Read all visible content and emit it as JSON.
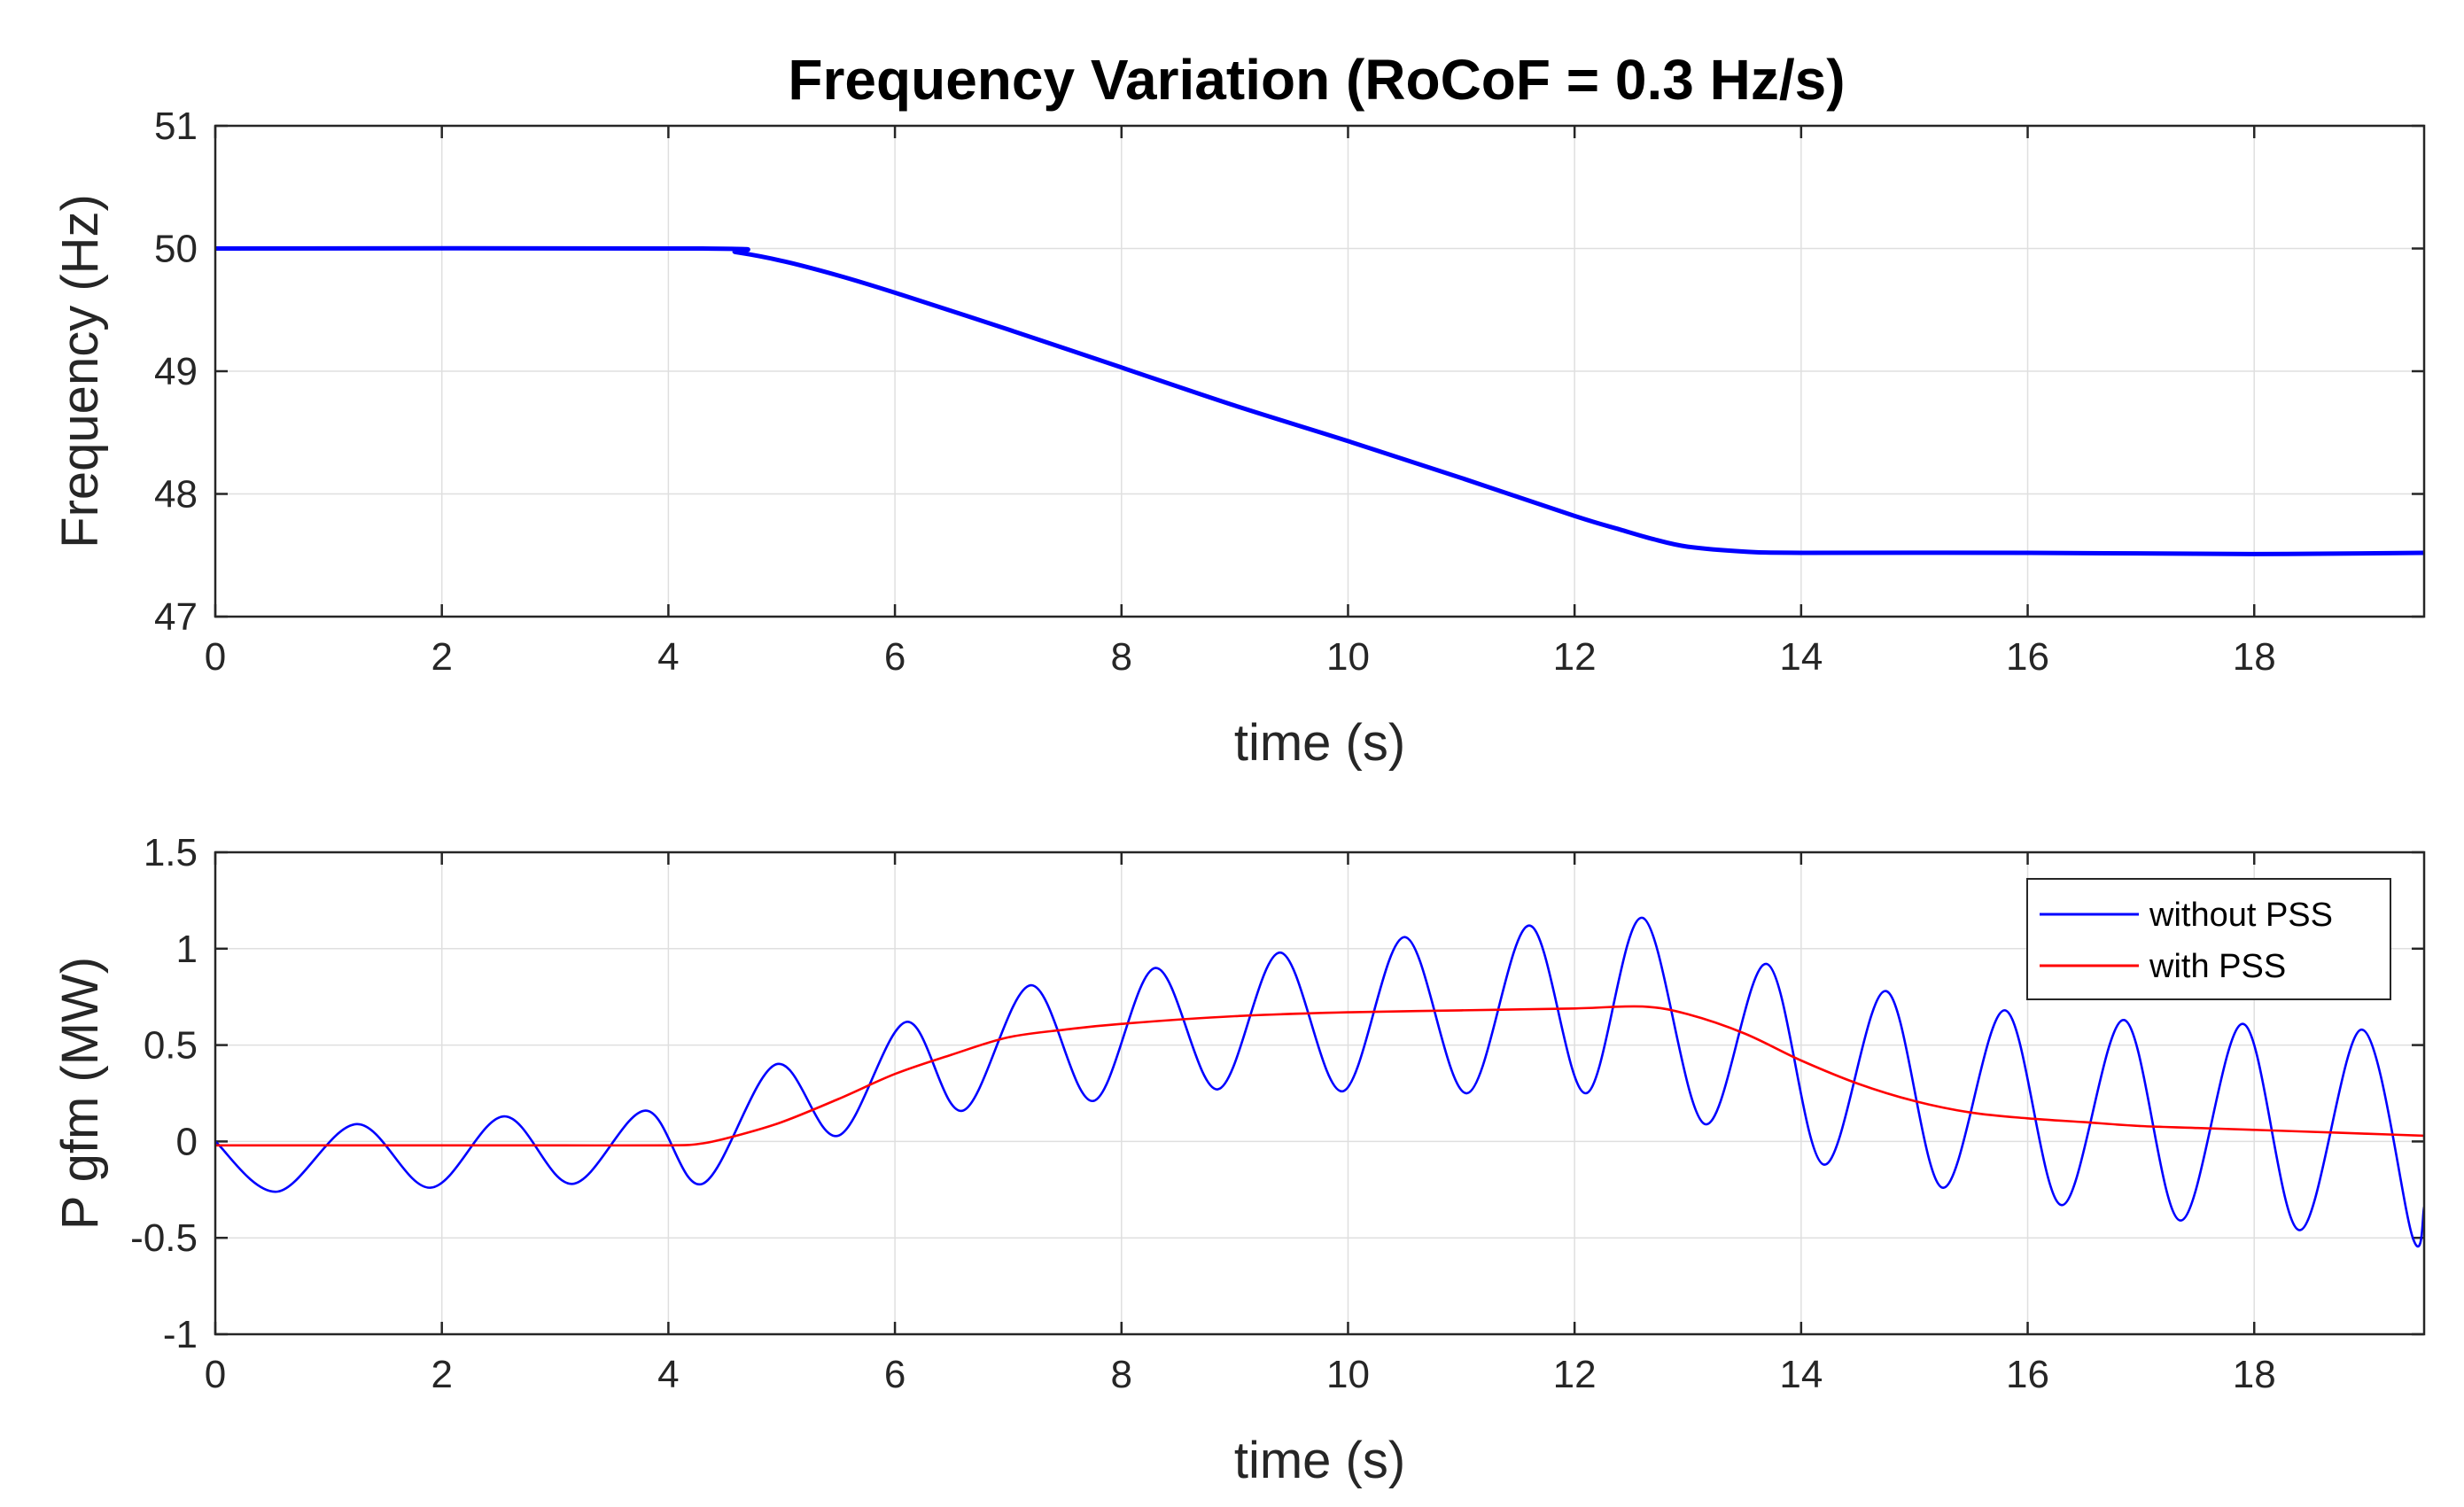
{
  "chart_data": [
    {
      "type": "line",
      "title": "Frequency Variation (RoCoF = 0.3 Hz/s)",
      "xlabel": "time (s)",
      "ylabel": "Frequency (Hz)",
      "xlim": [
        0,
        19.5
      ],
      "ylim": [
        47,
        51
      ],
      "xticks": [
        "0",
        "2",
        "4",
        "6",
        "8",
        "10",
        "12",
        "14",
        "16",
        "18"
      ],
      "yticks": [
        "47",
        "48",
        "49",
        "50",
        "51"
      ],
      "grid": true,
      "series": [
        {
          "name": "Frequency",
          "color": "#0000ff",
          "x": [
            0,
            4.3,
            4.6,
            5.0,
            5.5,
            6.0,
            7.0,
            8.0,
            9.0,
            10.0,
            11.0,
            12.0,
            12.4,
            12.7,
            13.0,
            13.5,
            14.0,
            16.0,
            18.0,
            19.5
          ],
          "y": [
            50.0,
            50.0,
            49.97,
            49.9,
            49.78,
            49.64,
            49.34,
            49.03,
            48.72,
            48.43,
            48.13,
            47.82,
            47.71,
            47.63,
            47.57,
            47.53,
            47.52,
            47.52,
            47.51,
            47.52
          ]
        }
      ]
    },
    {
      "type": "line",
      "title": "",
      "xlabel": "time (s)",
      "ylabel": "P gfm (MW)",
      "xlim": [
        0,
        19.5
      ],
      "ylim": [
        -1,
        1.5
      ],
      "xticks": [
        "0",
        "2",
        "4",
        "6",
        "8",
        "10",
        "12",
        "14",
        "16",
        "18"
      ],
      "yticks": [
        "-1",
        "-0.5",
        "0",
        "0.5",
        "1",
        "1.5"
      ],
      "grid": true,
      "legend": {
        "position": "top-right",
        "entries": [
          "without PSS",
          "with PSS"
        ]
      },
      "series": [
        {
          "name": "without PSS",
          "color": "#0000ff",
          "x": [
            0,
            0.55,
            1.25,
            1.9,
            2.55,
            3.15,
            3.8,
            4.3,
            4.95,
            5.5,
            6.1,
            6.6,
            7.2,
            7.75,
            8.3,
            8.85,
            9.4,
            9.95,
            10.5,
            11.05,
            11.6,
            12.1,
            12.6,
            13.15,
            13.7,
            14.2,
            14.75,
            15.25,
            15.8,
            16.3,
            16.85,
            17.35,
            17.9,
            18.4,
            18.95,
            19.4,
            19.5
          ],
          "y": [
            0.0,
            -0.26,
            0.09,
            -0.24,
            0.13,
            -0.22,
            0.16,
            -0.22,
            0.4,
            0.03,
            0.62,
            0.16,
            0.81,
            0.21,
            0.9,
            0.27,
            0.98,
            0.26,
            1.06,
            0.25,
            1.12,
            0.25,
            1.16,
            0.09,
            0.92,
            -0.12,
            0.78,
            -0.24,
            0.68,
            -0.33,
            0.63,
            -0.41,
            0.61,
            -0.46,
            0.58,
            -0.5,
            -0.34
          ]
        },
        {
          "name": "with PSS",
          "color": "#ff0000",
          "x": [
            0,
            1.0,
            2.0,
            3.0,
            4.0,
            4.3,
            4.6,
            5.0,
            5.5,
            6.0,
            6.5,
            7.0,
            7.5,
            8.0,
            9.0,
            10.0,
            11.0,
            12.0,
            12.6,
            13.0,
            13.5,
            14.0,
            14.5,
            15.0,
            15.5,
            16.0,
            16.5,
            17.0,
            17.5,
            18.0,
            18.5,
            19.0,
            19.5
          ],
          "y": [
            -0.02,
            -0.02,
            -0.02,
            -0.02,
            -0.02,
            -0.01,
            0.03,
            0.1,
            0.22,
            0.35,
            0.45,
            0.54,
            0.58,
            0.61,
            0.65,
            0.67,
            0.68,
            0.69,
            0.7,
            0.66,
            0.56,
            0.42,
            0.3,
            0.21,
            0.15,
            0.12,
            0.1,
            0.08,
            0.07,
            0.06,
            0.05,
            0.04,
            0.03
          ]
        }
      ]
    }
  ]
}
